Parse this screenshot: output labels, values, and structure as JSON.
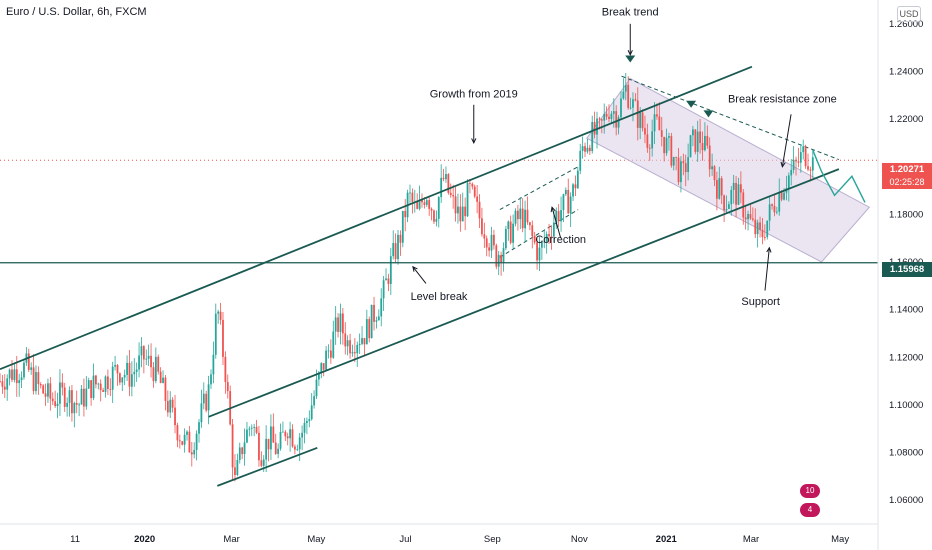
{
  "header": {
    "symbol": "Euro / U.S. Dollar, 6h, FXCM",
    "currency": "USD"
  },
  "price_labels": {
    "current": "1.20271",
    "countdown": "02:25:28",
    "support_line": "1.15968"
  },
  "badges": {
    "ideas": "10",
    "news": "4"
  },
  "colors": {
    "trend": "#1a5a52",
    "bull": "#26a69a",
    "bear": "#ef5350",
    "channel_fill": "#d9d0e6",
    "price_label": "#ef5350",
    "support_label": "#1a5a52"
  },
  "chart_data": {
    "type": "line",
    "ylim": [
      1.05,
      1.27
    ],
    "yticks": [
      1.06,
      1.08,
      1.1,
      1.12,
      1.14,
      1.16,
      1.18,
      1.2,
      1.22,
      1.24,
      1.26
    ],
    "ytick_labels": [
      "1.06000",
      "1.08000",
      "1.10000",
      "1.12000",
      "1.14000",
      "1.16000",
      "1.18000",
      "1.20000",
      "1.22000",
      "1.24000",
      "1.26000"
    ],
    "xtick_labels": [
      {
        "label": "11",
        "t": 0.0
      },
      {
        "label": "2020",
        "t": 1.6,
        "bold": true
      },
      {
        "label": "Mar",
        "t": 3.6
      },
      {
        "label": "May",
        "t": 5.55
      },
      {
        "label": "Jul",
        "t": 7.6
      },
      {
        "label": "Sep",
        "t": 9.6
      },
      {
        "label": "Nov",
        "t": 11.6
      },
      {
        "label": "2021",
        "t": 13.6,
        "bold": true
      },
      {
        "label": "Mar",
        "t": 15.55
      },
      {
        "label": "May",
        "t": 17.6
      }
    ],
    "xlim": [
      -0.9,
      19.3
    ],
    "price_path": [
      [
        -0.9,
        1.11
      ],
      [
        -0.6,
        1.114
      ],
      [
        -0.3,
        1.116
      ],
      [
        0.0,
        1.107
      ],
      [
        0.3,
        1.102
      ],
      [
        0.6,
        1.105
      ],
      [
        0.9,
        1.1
      ],
      [
        1.2,
        1.108
      ],
      [
        1.5,
        1.11
      ],
      [
        1.8,
        1.115
      ],
      [
        2.1,
        1.112
      ],
      [
        2.4,
        1.12
      ],
      [
        2.7,
        1.114
      ],
      [
        3.0,
        1.098
      ],
      [
        3.3,
        1.085
      ],
      [
        3.5,
        1.083
      ],
      [
        3.7,
        1.094
      ],
      [
        3.9,
        1.106
      ],
      [
        4.1,
        1.141
      ],
      [
        4.3,
        1.112
      ],
      [
        4.5,
        1.067
      ],
      [
        4.7,
        1.085
      ],
      [
        4.9,
        1.093
      ],
      [
        5.1,
        1.08
      ],
      [
        5.3,
        1.086
      ],
      [
        5.5,
        1.08
      ],
      [
        5.7,
        1.092
      ],
      [
        5.9,
        1.085
      ],
      [
        6.1,
        1.09
      ],
      [
        6.3,
        1.102
      ],
      [
        6.5,
        1.115
      ],
      [
        6.7,
        1.125
      ],
      [
        6.9,
        1.135
      ],
      [
        7.1,
        1.126
      ],
      [
        7.3,
        1.128
      ],
      [
        7.5,
        1.13
      ],
      [
        7.7,
        1.138
      ],
      [
        7.9,
        1.145
      ],
      [
        8.1,
        1.16
      ],
      [
        8.3,
        1.17
      ],
      [
        8.5,
        1.188
      ],
      [
        8.7,
        1.18
      ],
      [
        8.9,
        1.19
      ],
      [
        9.1,
        1.18
      ],
      [
        9.3,
        1.195
      ],
      [
        9.5,
        1.185
      ],
      [
        9.7,
        1.178
      ],
      [
        9.9,
        1.19
      ],
      [
        10.1,
        1.18
      ],
      [
        10.3,
        1.172
      ],
      [
        10.5,
        1.162
      ],
      [
        10.7,
        1.168
      ],
      [
        10.9,
        1.175
      ],
      [
        11.1,
        1.18
      ],
      [
        11.3,
        1.172
      ],
      [
        11.5,
        1.163
      ],
      [
        11.7,
        1.172
      ],
      [
        11.9,
        1.18
      ],
      [
        12.1,
        1.184
      ],
      [
        12.3,
        1.19
      ],
      [
        12.5,
        1.208
      ],
      [
        12.7,
        1.213
      ],
      [
        12.9,
        1.215
      ],
      [
        13.1,
        1.225
      ],
      [
        13.3,
        1.222
      ],
      [
        13.5,
        1.233
      ],
      [
        13.6,
        1.228
      ],
      [
        13.8,
        1.22
      ],
      [
        14.0,
        1.212
      ],
      [
        14.2,
        1.218
      ],
      [
        14.4,
        1.21
      ],
      [
        14.6,
        1.204
      ],
      [
        14.8,
        1.195
      ],
      [
        15.0,
        1.21
      ],
      [
        15.2,
        1.212
      ],
      [
        15.4,
        1.205
      ],
      [
        15.6,
        1.192
      ],
      [
        15.8,
        1.185
      ],
      [
        16.0,
        1.19
      ],
      [
        16.2,
        1.183
      ],
      [
        16.4,
        1.175
      ],
      [
        16.6,
        1.17
      ],
      [
        16.8,
        1.18
      ],
      [
        17.0,
        1.188
      ],
      [
        17.2,
        1.195
      ],
      [
        17.4,
        1.2
      ],
      [
        17.6,
        1.206
      ],
      [
        17.8,
        1.202
      ]
    ],
    "trendlines": [
      {
        "name": "upper-channel",
        "from": [
          -0.9,
          1.115
        ],
        "to": [
          16.4,
          1.242
        ]
      },
      {
        "name": "lower-channel",
        "from": [
          3.9,
          1.095
        ],
        "to": [
          18.4,
          1.199
        ]
      },
      {
        "name": "support-line",
        "from": [
          -0.9,
          1.15968
        ],
        "to": [
          19.3,
          1.15968
        ]
      },
      {
        "name": "early-support",
        "from": [
          4.1,
          1.066
        ],
        "to": [
          6.4,
          1.082
        ]
      }
    ],
    "annotations": [
      {
        "text": "Growth from 2019",
        "t": 10.0,
        "y": 1.229
      },
      {
        "text": "Break trend",
        "t": 13.6,
        "y": 1.2635
      },
      {
        "text": "Break resistance zone",
        "t": 17.1,
        "y": 1.227
      },
      {
        "text": "Correction",
        "t": 12.0,
        "y": 1.168
      },
      {
        "text": "Level break",
        "t": 9.2,
        "y": 1.144
      },
      {
        "text": "Support",
        "t": 16.6,
        "y": 1.142
      }
    ]
  }
}
